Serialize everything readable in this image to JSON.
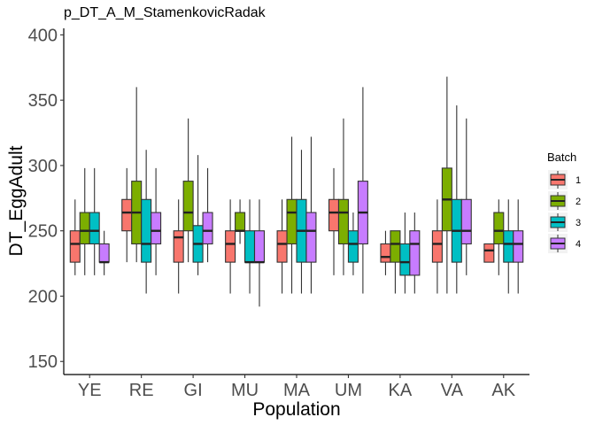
{
  "chart_data": {
    "type": "boxplot",
    "title": "p_DT_A_M_StamenkovicRadak",
    "xlabel": "Population",
    "ylabel": "DT_EggAdult",
    "ylim": [
      140,
      405
    ],
    "yticks": [
      150,
      200,
      250,
      300,
      350,
      400
    ],
    "grid": false,
    "legend": {
      "title": "Batch",
      "placement": "right"
    },
    "categories": [
      "YE",
      "RE",
      "GI",
      "MU",
      "MA",
      "UM",
      "KA",
      "VA",
      "AK"
    ],
    "series": [
      {
        "name": "1",
        "color": "#F8766D",
        "boxes": [
          [
            216,
            226,
            240,
            250,
            274
          ],
          [
            226,
            250,
            264,
            274,
            298
          ],
          [
            202,
            226,
            245,
            250,
            274
          ],
          [
            202,
            226,
            240,
            250,
            274
          ],
          [
            202,
            226,
            240,
            250,
            274
          ],
          [
            216,
            250,
            264,
            274,
            298
          ],
          [
            216,
            226,
            230,
            240,
            250
          ],
          [
            202,
            226,
            240,
            250,
            274
          ],
          [
            226,
            226,
            235,
            240,
            240
          ]
        ]
      },
      {
        "name": "2",
        "color": "#7CAE00",
        "boxes": [
          [
            216,
            240,
            250,
            264,
            298
          ],
          [
            226,
            240,
            264,
            288,
            360
          ],
          [
            226,
            250,
            264,
            288,
            336
          ],
          [
            240,
            250,
            250,
            264,
            274
          ],
          [
            202,
            240,
            264,
            274,
            322
          ],
          [
            216,
            240,
            264,
            274,
            336
          ],
          [
            202,
            226,
            240,
            250,
            250
          ],
          [
            202,
            250,
            274,
            298,
            368
          ],
          [
            216,
            240,
            250,
            264,
            274
          ]
        ]
      },
      {
        "name": "3",
        "color": "#00BFC4",
        "boxes": [
          [
            216,
            240,
            250,
            264,
            298
          ],
          [
            202,
            226,
            240,
            274,
            312
          ],
          [
            216,
            226,
            240,
            254,
            308
          ],
          [
            202,
            226,
            226,
            250,
            274
          ],
          [
            202,
            226,
            250,
            274,
            312
          ],
          [
            216,
            226,
            240,
            250,
            264
          ],
          [
            202,
            216,
            226,
            240,
            264
          ],
          [
            202,
            226,
            250,
            274,
            346
          ],
          [
            202,
            226,
            240,
            250,
            274
          ]
        ]
      },
      {
        "name": "4",
        "color": "#C77CFF",
        "boxes": [
          [
            216,
            226,
            226,
            240,
            250
          ],
          [
            216,
            240,
            250,
            264,
            298
          ],
          [
            226,
            240,
            250,
            264,
            298
          ],
          [
            192,
            226,
            226,
            250,
            274
          ],
          [
            202,
            226,
            250,
            264,
            322
          ],
          [
            202,
            240,
            264,
            288,
            360
          ],
          [
            202,
            216,
            240,
            250,
            264
          ],
          [
            216,
            240,
            250,
            274,
            336
          ],
          [
            202,
            226,
            240,
            250,
            274
          ]
        ]
      }
    ]
  }
}
